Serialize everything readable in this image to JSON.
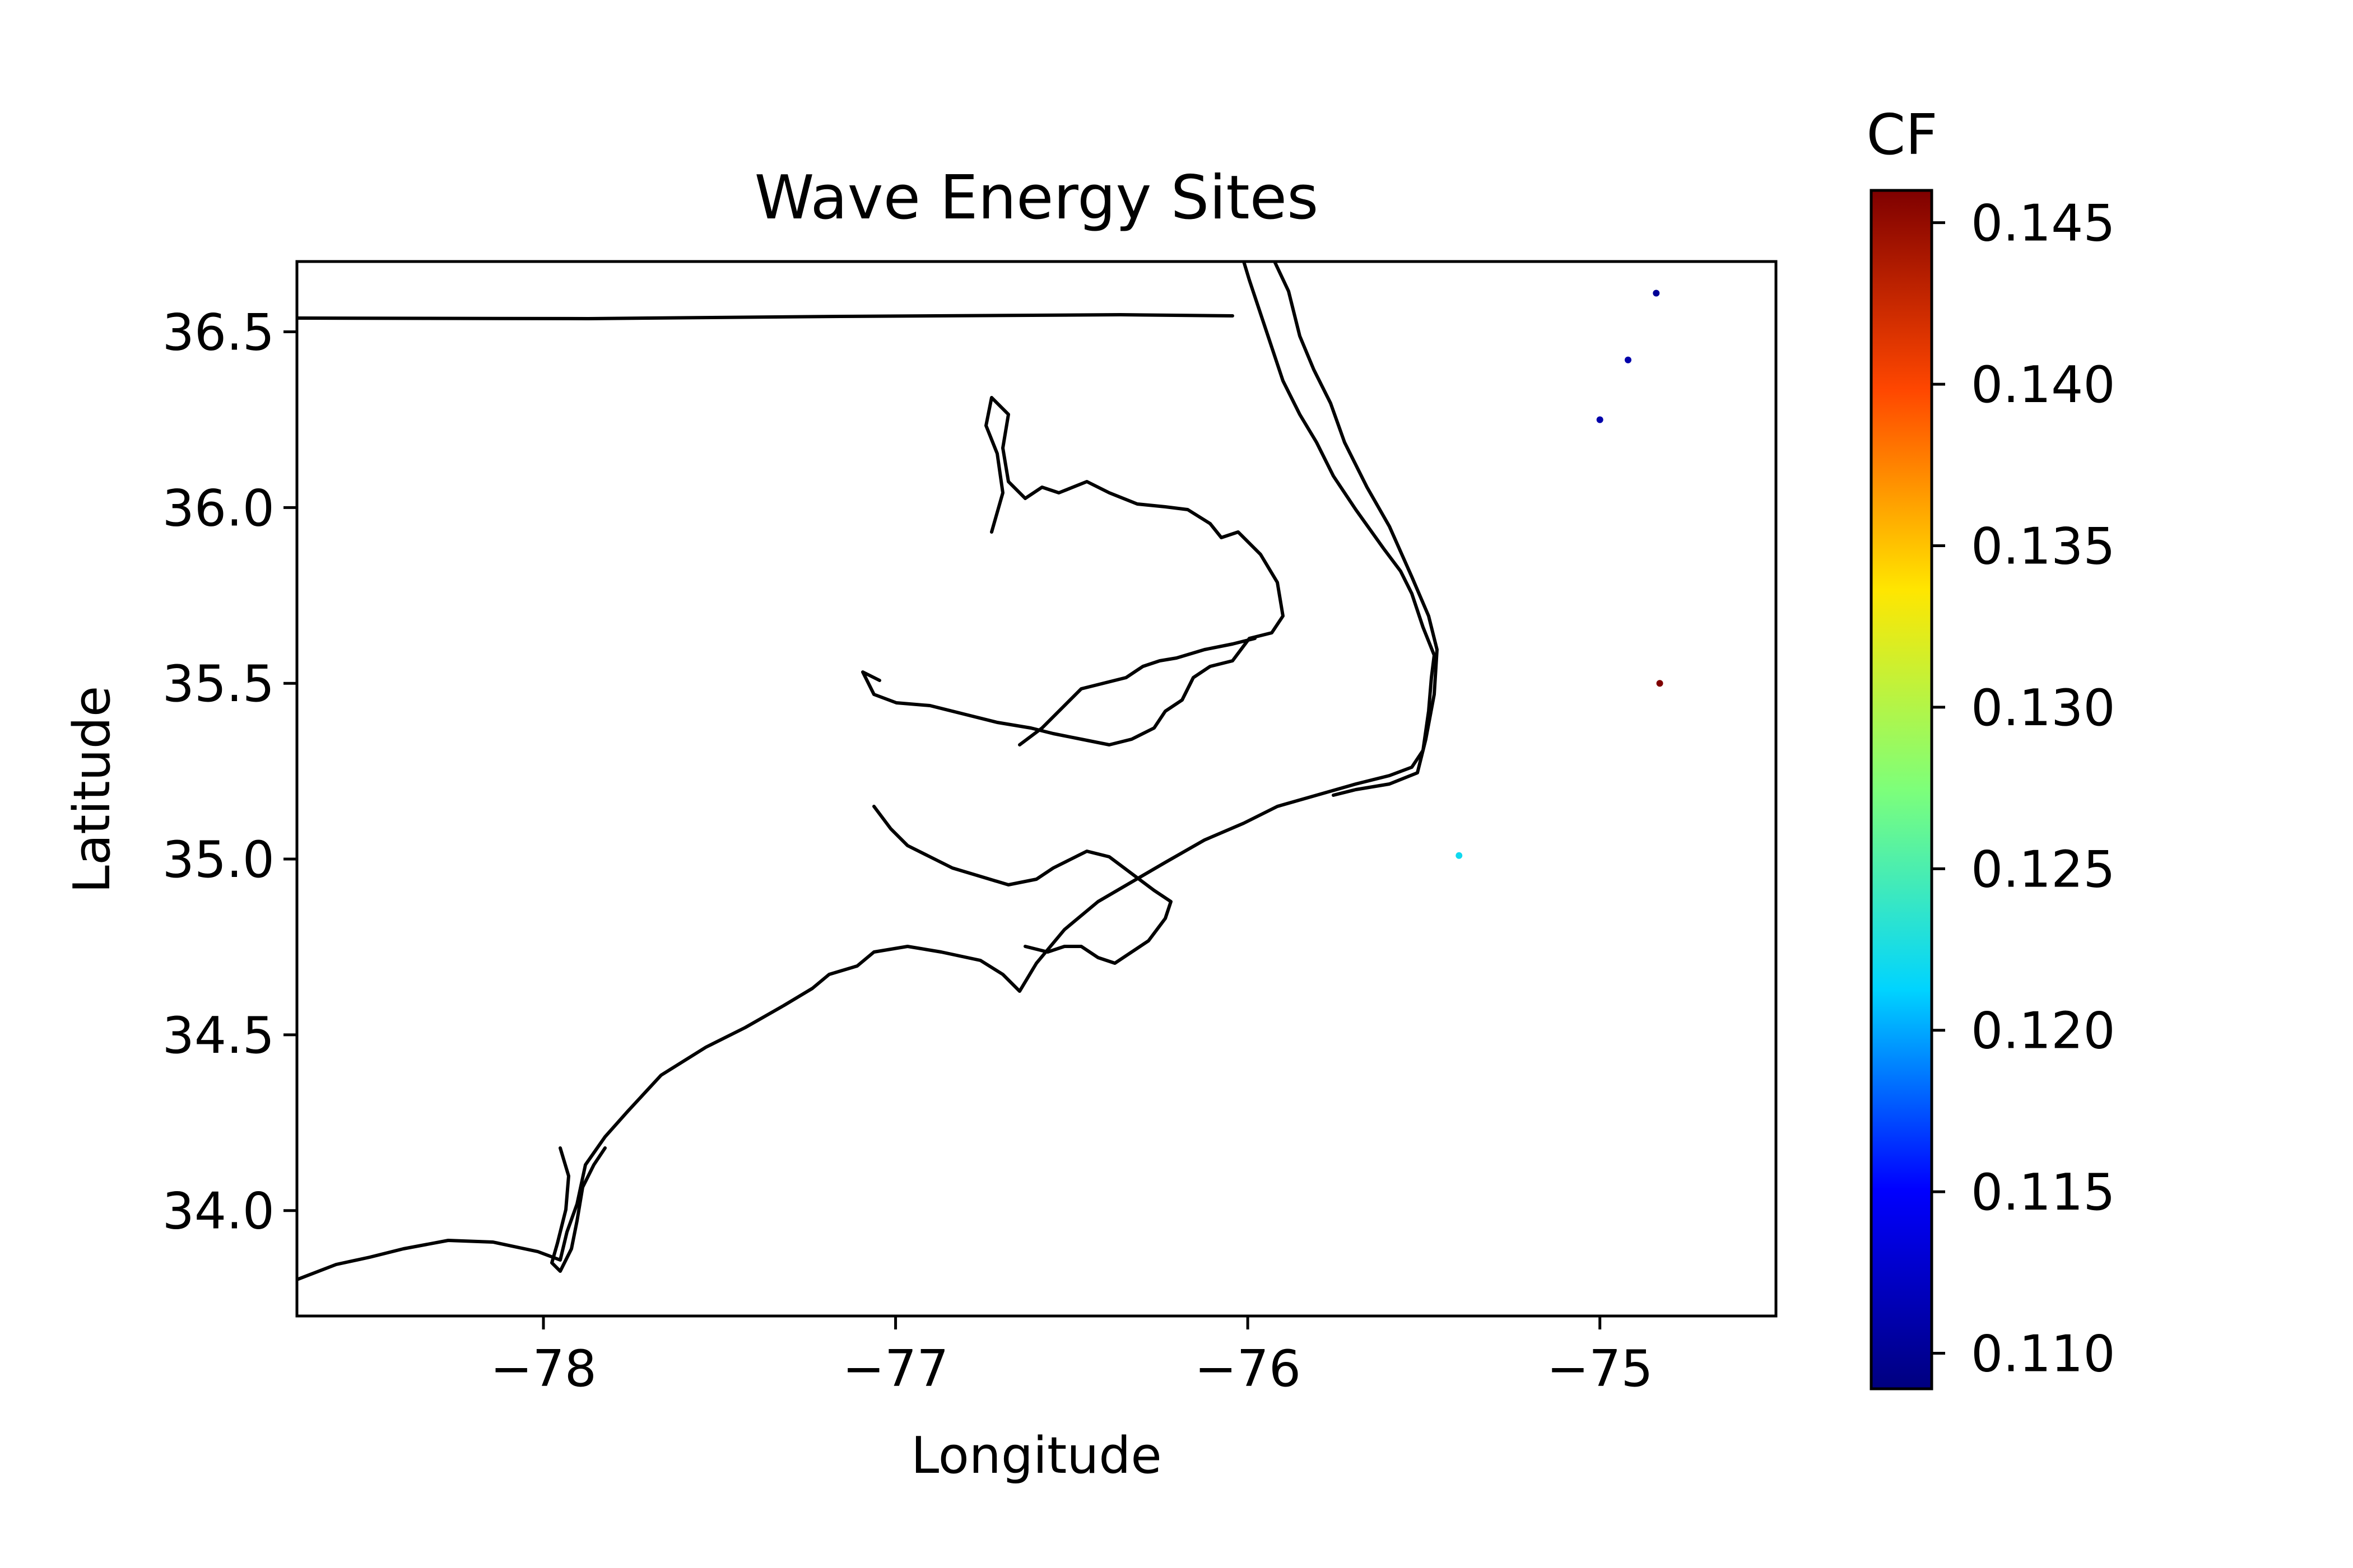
{
  "chart_data": {
    "type": "scatter",
    "title": "Wave Energy Sites",
    "xlabel": "Longitude",
    "ylabel": "Latitude",
    "xlim": [
      -78.7,
      -74.5
    ],
    "ylim": [
      33.7,
      36.7
    ],
    "xticks": [
      {
        "value": -78,
        "label": "−78"
      },
      {
        "value": -77,
        "label": "−77"
      },
      {
        "value": -76,
        "label": "−76"
      },
      {
        "value": -75,
        "label": "−75"
      }
    ],
    "yticks": [
      {
        "value": 34.0,
        "label": "34.0"
      },
      {
        "value": 34.5,
        "label": "34.5"
      },
      {
        "value": 35.0,
        "label": "35.0"
      },
      {
        "value": 35.5,
        "label": "35.5"
      },
      {
        "value": 36.0,
        "label": "36.0"
      },
      {
        "value": 36.5,
        "label": "36.5"
      }
    ],
    "grid": false,
    "points": [
      {
        "lon": -74.84,
        "lat": 36.61,
        "cf": 0.11
      },
      {
        "lon": -74.92,
        "lat": 36.42,
        "cf": 0.111
      },
      {
        "lon": -75.0,
        "lat": 36.25,
        "cf": 0.111
      },
      {
        "lon": -74.83,
        "lat": 35.5,
        "cf": 0.146
      },
      {
        "lon": -75.4,
        "lat": 35.01,
        "cf": 0.122
      }
    ],
    "colorbar": {
      "title": "CF",
      "colormap": "jet",
      "min": 0.1089,
      "max": 0.146,
      "ticks": [
        {
          "value": 0.11,
          "label": "0.110"
        },
        {
          "value": 0.115,
          "label": "0.115"
        },
        {
          "value": 0.12,
          "label": "0.120"
        },
        {
          "value": 0.125,
          "label": "0.125"
        },
        {
          "value": 0.13,
          "label": "0.130"
        },
        {
          "value": 0.135,
          "label": "0.135"
        },
        {
          "value": 0.14,
          "label": "0.140"
        },
        {
          "value": 0.145,
          "label": "0.145"
        }
      ],
      "stops": [
        "#00007f",
        "#0000ff",
        "#00d4ff",
        "#7dff7a",
        "#ffe600",
        "#ff4700",
        "#7f0000"
      ]
    },
    "coastline_color": "#000000"
  }
}
